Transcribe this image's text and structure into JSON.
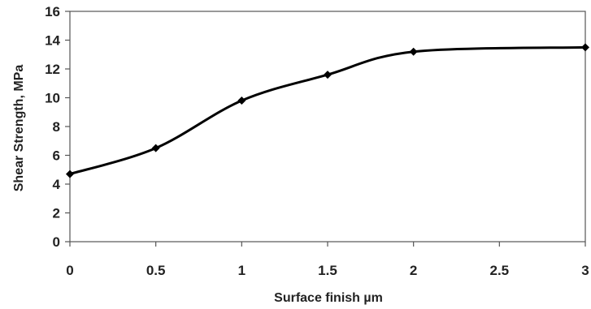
{
  "chart_data": {
    "type": "line",
    "title": "",
    "xlabel": "Surface finish µm",
    "ylabel": "Shear Strength, MPa",
    "xlim": [
      0,
      3
    ],
    "ylim": [
      0,
      16
    ],
    "x_ticks": [
      0,
      0.5,
      1,
      1.5,
      2,
      2.5,
      3
    ],
    "y_ticks": [
      0,
      2,
      4,
      6,
      8,
      10,
      12,
      14,
      16
    ],
    "x_tick_labels": [
      "0",
      "0.5",
      "1",
      "1.5",
      "2",
      "2.5",
      "3"
    ],
    "y_tick_labels": [
      "0",
      "2",
      "4",
      "6",
      "8",
      "10",
      "12",
      "14",
      "16"
    ],
    "grid": false,
    "legend": "none",
    "line_style": "smooth",
    "series": [
      {
        "x": [
          0,
          0.5,
          1,
          1.5,
          2,
          3
        ],
        "y": [
          4.7,
          6.5,
          9.8,
          11.6,
          13.2,
          13.5
        ],
        "color": "#000000",
        "marker": "diamond"
      }
    ]
  }
}
